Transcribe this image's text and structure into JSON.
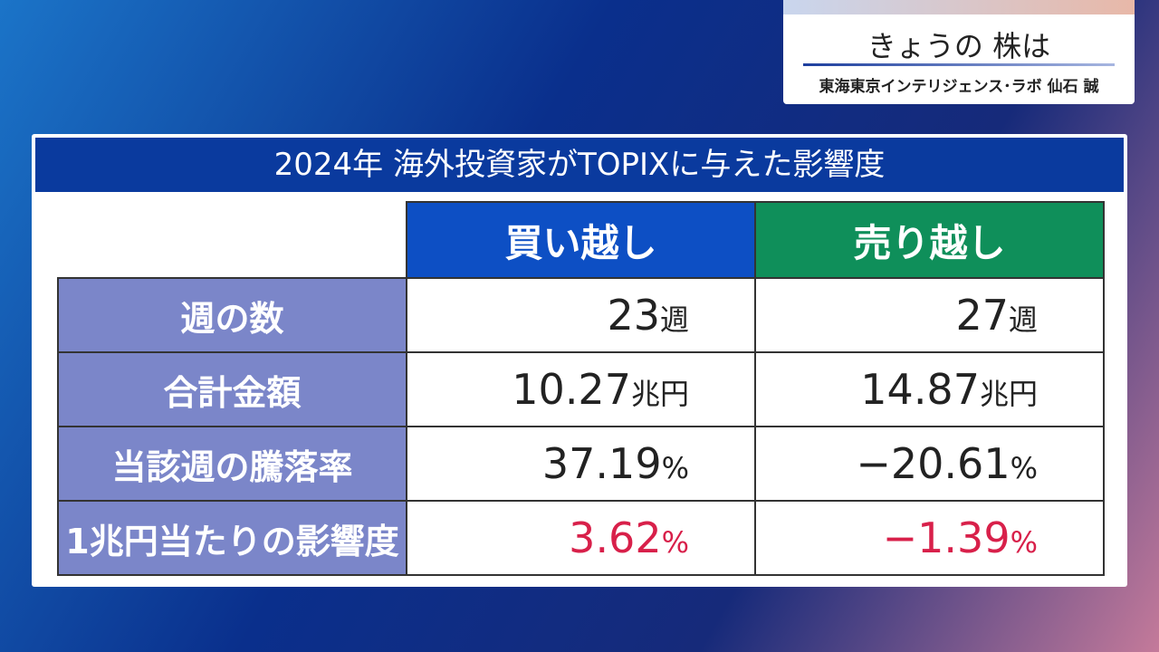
{
  "header": {
    "title": "きょうの 株は",
    "subtitle": "東海東京インテリジェンス･ラボ 仙石 誠"
  },
  "table": {
    "title": "2024年 海外投資家がTOPIXに与えた影響度",
    "columns": [
      "買い越し",
      "売り越し"
    ],
    "rows": [
      {
        "label": "週の数",
        "cells": [
          {
            "value": "23",
            "unit": "週"
          },
          {
            "value": "27",
            "unit": "週"
          }
        ]
      },
      {
        "label": "合計金額",
        "cells": [
          {
            "value": "10.27",
            "unit": "兆円"
          },
          {
            "value": "14.87",
            "unit": "兆円"
          }
        ]
      },
      {
        "label": "当該週の騰落率",
        "cells": [
          {
            "value": "37.19",
            "unit": "%"
          },
          {
            "value": "−20.61",
            "unit": "%"
          }
        ]
      },
      {
        "label": "1兆円当たりの影響度",
        "cells": [
          {
            "value": "3.62",
            "unit": "%"
          },
          {
            "value": "−1.39",
            "unit": "%"
          }
        ]
      }
    ]
  }
}
